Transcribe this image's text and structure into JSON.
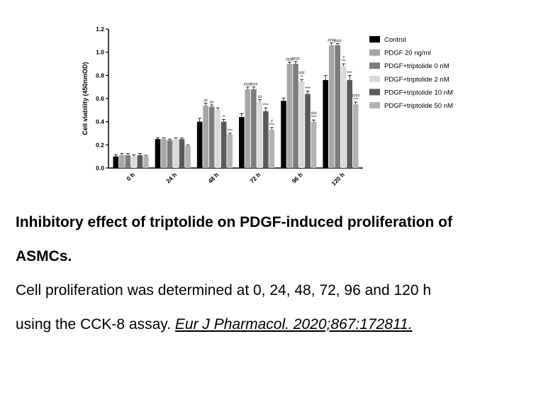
{
  "chart_data": {
    "type": "bar",
    "ylabel": "Cell viability (450nmOD)",
    "xlabel": "",
    "ylim": [
      0,
      1.2
    ],
    "yticks": [
      "0.0",
      "0.2",
      "0.4",
      "0.6",
      "0.8",
      "1.0",
      "1.2"
    ],
    "categories": [
      "0 h",
      "24 h",
      "48 h",
      "72 h",
      "96 h",
      "120 h"
    ],
    "legend_position": "right",
    "series": [
      {
        "name": "Control",
        "color": "#000000",
        "values": [
          0.1,
          0.25,
          0.4,
          0.44,
          0.58,
          0.76
        ],
        "errors": [
          0.015,
          0.01,
          0.03,
          0.03,
          0.025,
          0.04
        ],
        "annotations": [
          "",
          "",
          "",
          "",
          "",
          ""
        ]
      },
      {
        "name": "PDGF 20 ng/ml",
        "color": "#a6a6a6",
        "values": [
          0.11,
          0.25,
          0.54,
          0.68,
          0.9,
          1.06
        ],
        "errors": [
          0.015,
          0.01,
          0.02,
          0.02,
          0.015,
          0.02
        ],
        "annotations": [
          "",
          "",
          "##",
          "####",
          "####",
          "####"
        ]
      },
      {
        "name": "PDGF+triptolide 0 nM",
        "color": "#7d7d7d",
        "values": [
          0.11,
          0.24,
          0.53,
          0.68,
          0.9,
          1.06
        ],
        "errors": [
          0.015,
          0.01,
          0.015,
          0.02,
          0.02,
          0.015
        ],
        "annotations": [
          "",
          "",
          "##",
          "####",
          "####",
          "####"
        ]
      },
      {
        "name": "PDGF+triptolide 2 nM",
        "color": "#dadada",
        "values": [
          0.1,
          0.25,
          0.5,
          0.57,
          0.75,
          0.88
        ],
        "errors": [
          0.015,
          0.01,
          0.02,
          0.02,
          0.015,
          0.02
        ],
        "annotations": [
          "",
          "",
          "",
          "##",
          "###\n**",
          "#\n***"
        ]
      },
      {
        "name": "PDGF+triptolide 10 nM",
        "color": "#5a5a5a",
        "values": [
          0.11,
          0.25,
          0.4,
          0.49,
          0.64,
          0.76
        ],
        "errors": [
          0.015,
          0.01,
          0.02,
          0.03,
          0.025,
          0.04
        ],
        "annotations": [
          "",
          "",
          "**",
          "****",
          "****",
          "****"
        ]
      },
      {
        "name": "PDGF+triptolide 50 nM",
        "color": "#b3b3b3",
        "values": [
          0.1,
          0.19,
          0.29,
          0.33,
          0.4,
          0.55
        ],
        "errors": [
          0.01,
          0.008,
          0.01,
          0.02,
          0.015,
          0.02
        ],
        "annotations": [
          "",
          "",
          "****",
          "#\n****",
          "###\n****",
          "####\n****"
        ]
      }
    ]
  },
  "caption": {
    "title_line1": "Inhibitory effect of triptolide on PDGF-induced proliferation of",
    "title_line2": "ASMCs.",
    "body_line1": "Cell proliferation was determined at 0, 24, 48, 72, 96 and 120 h",
    "body_line2_text": "using the CCK-8 assay. ",
    "citation": "Eur J Pharmacol. 2020;867:172811. "
  }
}
